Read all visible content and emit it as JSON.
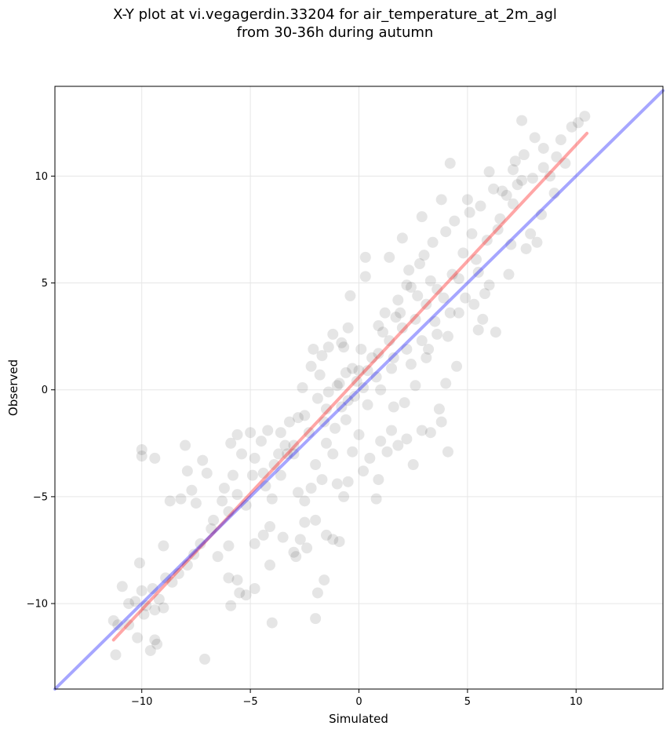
{
  "title_line1": "X-Y plot at vi.vegagerdin.33204 for air_temperature_at_2m_agl",
  "title_line2": "from 30-36h during autumn",
  "chart_data": {
    "type": "scatter",
    "xlabel": "Simulated",
    "ylabel": "Observed",
    "xlim": [
      -14,
      14
    ],
    "ylim": [
      -14,
      14.2
    ],
    "xticks": [
      -10,
      -5,
      0,
      5,
      10
    ],
    "xtick_labels": [
      "−10",
      "−5",
      "0",
      "5",
      "10"
    ],
    "yticks": [
      -10,
      -5,
      0,
      5,
      10
    ],
    "ytick_labels": [
      "−10",
      "−5",
      "0",
      "5",
      "10"
    ],
    "grid": true,
    "point_color": "#000000",
    "point_alpha": 0.1,
    "points": [
      [
        -11.3,
        -10.8
      ],
      [
        -11.1,
        -11.0
      ],
      [
        -10.9,
        -9.2
      ],
      [
        -11.2,
        -12.4
      ],
      [
        -10.6,
        -10.0
      ],
      [
        -10.3,
        -9.9
      ],
      [
        -10.1,
        -8.1
      ],
      [
        -10.0,
        -9.4
      ],
      [
        -10.2,
        -11.6
      ],
      [
        -10.0,
        -2.8
      ],
      [
        -10.0,
        -3.1
      ],
      [
        -9.4,
        -3.2
      ],
      [
        -9.5,
        -9.3
      ],
      [
        -9.6,
        -12.2
      ],
      [
        -9.4,
        -11.7
      ],
      [
        -9.3,
        -11.9
      ],
      [
        -9.4,
        -10.3
      ],
      [
        -9.0,
        -10.2
      ],
      [
        -9.0,
        -7.3
      ],
      [
        -8.7,
        -5.2
      ],
      [
        -8.2,
        -5.1
      ],
      [
        -8.0,
        -2.6
      ],
      [
        -7.9,
        -3.8
      ],
      [
        -7.7,
        -4.7
      ],
      [
        -7.5,
        -5.3
      ],
      [
        -7.2,
        -3.3
      ],
      [
        -7.0,
        -3.9
      ],
      [
        -7.1,
        -12.6
      ],
      [
        -6.5,
        -7.8
      ],
      [
        -6.3,
        -5.2
      ],
      [
        -6.0,
        -7.3
      ],
      [
        -6.0,
        -8.8
      ],
      [
        -5.6,
        -8.9
      ],
      [
        -5.5,
        -9.5
      ],
      [
        -5.9,
        -10.1
      ],
      [
        -5.2,
        -9.6
      ],
      [
        -4.8,
        -9.3
      ],
      [
        -4.8,
        -7.2
      ],
      [
        -4.4,
        -6.8
      ],
      [
        -4.1,
        -6.4
      ],
      [
        -4.1,
        -8.2
      ],
      [
        -4.0,
        -10.9
      ],
      [
        -3.5,
        -6.9
      ],
      [
        -3.0,
        -7.6
      ],
      [
        -2.9,
        -7.8
      ],
      [
        -2.7,
        -7.0
      ],
      [
        -2.5,
        -6.2
      ],
      [
        -2.4,
        -7.4
      ],
      [
        -2.0,
        -6.1
      ],
      [
        -1.9,
        -9.5
      ],
      [
        -1.6,
        -8.9
      ],
      [
        -2.0,
        -10.7
      ],
      [
        -1.5,
        -6.8
      ],
      [
        -1.2,
        -7.0
      ],
      [
        -0.9,
        -7.1
      ],
      [
        -5.9,
        -2.5
      ],
      [
        -5.6,
        -2.1
      ],
      [
        -5.0,
        -2.0
      ],
      [
        -4.8,
        -3.2
      ],
      [
        -4.4,
        -3.9
      ],
      [
        -4.0,
        -5.1
      ],
      [
        -3.6,
        -4.0
      ],
      [
        -3.3,
        -3.0
      ],
      [
        -3.0,
        -2.6
      ],
      [
        -2.8,
        -4.8
      ],
      [
        -2.5,
        -5.2
      ],
      [
        -2.2,
        -4.6
      ],
      [
        -2.0,
        -3.5
      ],
      [
        -1.7,
        -4.2
      ],
      [
        -1.5,
        -2.5
      ],
      [
        -1.2,
        -3.0
      ],
      [
        -1.0,
        -4.4
      ],
      [
        -0.7,
        -5.0
      ],
      [
        -0.5,
        -4.3
      ],
      [
        -0.3,
        -2.9
      ],
      [
        0.0,
        -2.1
      ],
      [
        0.2,
        -3.8
      ],
      [
        0.5,
        -3.2
      ],
      [
        0.9,
        -4.2
      ],
      [
        1.0,
        -2.4
      ],
      [
        1.3,
        -2.9
      ],
      [
        1.5,
        -1.9
      ],
      [
        1.8,
        -2.6
      ],
      [
        2.2,
        -2.3
      ],
      [
        2.5,
        -3.5
      ],
      [
        2.9,
        -1.9
      ],
      [
        3.3,
        -2.0
      ],
      [
        3.8,
        -1.5
      ],
      [
        4.1,
        -2.9
      ],
      [
        0.8,
        -5.1
      ],
      [
        -2.1,
        1.9
      ],
      [
        -1.7,
        1.6
      ],
      [
        -1.4,
        2.0
      ],
      [
        -1.2,
        2.6
      ],
      [
        -0.8,
        2.2
      ],
      [
        -0.5,
        2.9
      ],
      [
        -0.4,
        4.4
      ],
      [
        0.3,
        6.2
      ],
      [
        0.3,
        5.3
      ],
      [
        1.4,
        6.2
      ],
      [
        2.0,
        7.1
      ],
      [
        2.9,
        8.1
      ],
      [
        3.8,
        8.9
      ],
      [
        4.2,
        10.6
      ],
      [
        6.0,
        10.2
      ],
      [
        7.2,
        10.7
      ],
      [
        7.6,
        11.0
      ],
      [
        8.1,
        11.8
      ],
      [
        8.5,
        11.3
      ],
      [
        9.3,
        11.7
      ],
      [
        9.8,
        12.3
      ],
      [
        10.1,
        12.5
      ],
      [
        10.4,
        12.8
      ],
      [
        7.5,
        12.6
      ],
      [
        7.7,
        6.6
      ],
      [
        8.2,
        6.9
      ],
      [
        6.3,
        2.7
      ],
      [
        5.7,
        3.3
      ],
      [
        5.5,
        2.8
      ],
      [
        5.8,
        4.5
      ],
      [
        3.7,
        -0.9
      ],
      [
        4.0,
        0.3
      ],
      [
        4.5,
        1.1
      ],
      [
        2.6,
        0.2
      ],
      [
        2.1,
        -0.6
      ],
      [
        1.6,
        -0.8
      ],
      [
        3.1,
        1.5
      ],
      [
        1.0,
        0.0
      ],
      [
        0.4,
        -0.7
      ],
      [
        -0.6,
        -1.4
      ],
      [
        -1.5,
        -0.9
      ],
      [
        -2.5,
        -1.2
      ],
      [
        -3.2,
        -1.5
      ],
      [
        -3.6,
        -2.0
      ],
      [
        -4.2,
        -1.9
      ],
      [
        -4.5,
        -2.4
      ],
      [
        -5.4,
        -3.0
      ],
      [
        -5.8,
        -4.0
      ],
      [
        -6.2,
        -4.6
      ],
      [
        -6.7,
        -6.1
      ],
      [
        -7.3,
        -7.2
      ],
      [
        -7.9,
        -8.2
      ],
      [
        -8.6,
        -9.0
      ],
      [
        -9.2,
        -9.8
      ],
      [
        -9.9,
        -10.5
      ],
      [
        -10.6,
        -11.0
      ],
      [
        8.8,
        10.0
      ],
      [
        9.0,
        9.2
      ],
      [
        9.5,
        10.6
      ],
      [
        8.4,
        8.2
      ],
      [
        7.1,
        8.7
      ],
      [
        6.6,
        9.3
      ],
      [
        6.4,
        7.5
      ],
      [
        7.3,
        9.6
      ],
      [
        8.0,
        9.9
      ],
      [
        7.9,
        7.3
      ],
      [
        5.0,
        8.9
      ],
      [
        5.2,
        7.3
      ],
      [
        4.8,
        6.4
      ],
      [
        4.3,
        5.4
      ],
      [
        3.5,
        3.2
      ],
      [
        2.7,
        4.4
      ],
      [
        2.3,
        5.6
      ],
      [
        1.7,
        3.4
      ],
      [
        1.1,
        2.7
      ],
      [
        0.6,
        1.5
      ],
      [
        0.0,
        0.9
      ],
      [
        -0.3,
        1.0
      ],
      [
        -0.9,
        0.3
      ],
      [
        -1.4,
        -0.1
      ],
      [
        -1.8,
        0.7
      ],
      [
        -1.9,
        -0.4
      ],
      [
        -2.6,
        0.1
      ],
      [
        -2.2,
        1.1
      ],
      [
        -0.7,
        2.0
      ],
      [
        0.1,
        1.9
      ],
      [
        0.9,
        3.0
      ],
      [
        1.9,
        3.6
      ],
      [
        2.2,
        4.9
      ],
      [
        3.0,
        6.3
      ],
      [
        3.3,
        5.1
      ],
      [
        3.9,
        4.3
      ],
      [
        4.6,
        5.2
      ],
      [
        5.4,
        6.1
      ],
      [
        5.9,
        7.0
      ],
      [
        6.5,
        8.0
      ],
      [
        7.0,
        6.8
      ],
      [
        6.9,
        5.4
      ],
      [
        6.0,
        4.9
      ],
      [
        5.3,
        4.0
      ],
      [
        4.6,
        3.6
      ],
      [
        4.1,
        2.5
      ],
      [
        3.2,
        1.9
      ],
      [
        2.4,
        1.2
      ],
      [
        1.5,
        1.0
      ],
      [
        0.8,
        0.6
      ],
      [
        0.2,
        0.1
      ],
      [
        -0.5,
        -0.5
      ],
      [
        -1.1,
        -1.8
      ],
      [
        -2.8,
        -1.3
      ],
      [
        -3.4,
        -2.6
      ],
      [
        -3.9,
        -3.5
      ],
      [
        -4.3,
        -4.5
      ],
      [
        -5.2,
        -5.4
      ],
      [
        -5.6,
        -4.9
      ],
      [
        -6.8,
        -6.5
      ],
      [
        -7.6,
        -7.7
      ],
      [
        -8.3,
        -8.6
      ],
      [
        -8.9,
        -8.8
      ],
      [
        -9.8,
        -10.1
      ],
      [
        2.0,
        2.9
      ],
      [
        2.6,
        3.3
      ],
      [
        3.1,
        4.0
      ],
      [
        3.6,
        4.7
      ],
      [
        1.4,
        2.3
      ],
      [
        0.9,
        1.7
      ],
      [
        0.4,
        0.9
      ],
      [
        -0.1,
        0.4
      ],
      [
        -0.6,
        0.8
      ],
      [
        -1.0,
        0.2
      ],
      [
        1.2,
        3.6
      ],
      [
        1.8,
        4.2
      ],
      [
        2.4,
        4.8
      ],
      [
        2.8,
        5.9
      ],
      [
        3.4,
        6.9
      ],
      [
        4.0,
        7.4
      ],
      [
        4.4,
        7.9
      ],
      [
        5.1,
        8.3
      ],
      [
        5.6,
        8.6
      ],
      [
        6.2,
        9.4
      ],
      [
        6.8,
        9.1
      ],
      [
        7.5,
        9.8
      ],
      [
        7.1,
        10.3
      ],
      [
        8.5,
        10.4
      ],
      [
        9.1,
        10.9
      ],
      [
        5.5,
        5.5
      ],
      [
        4.9,
        4.3
      ],
      [
        4.2,
        3.6
      ],
      [
        3.6,
        2.6
      ],
      [
        2.9,
        2.3
      ],
      [
        2.2,
        1.9
      ],
      [
        1.6,
        1.5
      ],
      [
        -0.2,
        -0.3
      ],
      [
        -0.8,
        -0.8
      ],
      [
        -1.6,
        -1.5
      ],
      [
        -2.3,
        -2.0
      ],
      [
        -3.0,
        -3.0
      ],
      [
        -3.7,
        -3.0
      ],
      [
        -4.9,
        -4.0
      ],
      [
        -6.0,
        -5.7
      ]
    ],
    "lines": [
      {
        "color": "#ff0000",
        "alpha": 0.35,
        "x": [
          -11.3,
          10.5
        ],
        "y": [
          -11.7,
          12.0
        ]
      },
      {
        "color": "#0000ff",
        "alpha": 0.35,
        "x": [
          -14,
          14
        ],
        "y": [
          -14,
          14
        ]
      }
    ]
  }
}
